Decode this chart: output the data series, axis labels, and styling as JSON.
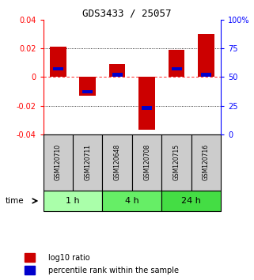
{
  "title": "GDS3433 / 25057",
  "samples": [
    "GSM120710",
    "GSM120711",
    "GSM120648",
    "GSM120708",
    "GSM120715",
    "GSM120716"
  ],
  "groups": [
    {
      "label": "1 h",
      "color": "#aaffaa"
    },
    {
      "label": "4 h",
      "color": "#66ee66"
    },
    {
      "label": "24 h",
      "color": "#44dd44"
    }
  ],
  "log10_ratio": [
    0.021,
    -0.013,
    0.009,
    -0.037,
    0.019,
    0.03
  ],
  "percentile_rank": [
    0.57,
    0.37,
    0.52,
    0.23,
    0.57,
    0.52
  ],
  "bar_color": "#cc0000",
  "percentile_color": "#0000cc",
  "ylim": [
    -0.04,
    0.04
  ],
  "yticks_left": [
    -0.04,
    -0.02,
    0.0,
    0.02,
    0.04
  ],
  "yticks_right_labels": [
    "0",
    "25",
    "50",
    "75",
    "100%"
  ],
  "legend_red": "log10 ratio",
  "legend_blue": "percentile rank within the sample",
  "header_bg": "#cccccc",
  "bar_width": 0.55,
  "percentile_bar_width": 0.35,
  "percentile_bar_height": 0.0025
}
